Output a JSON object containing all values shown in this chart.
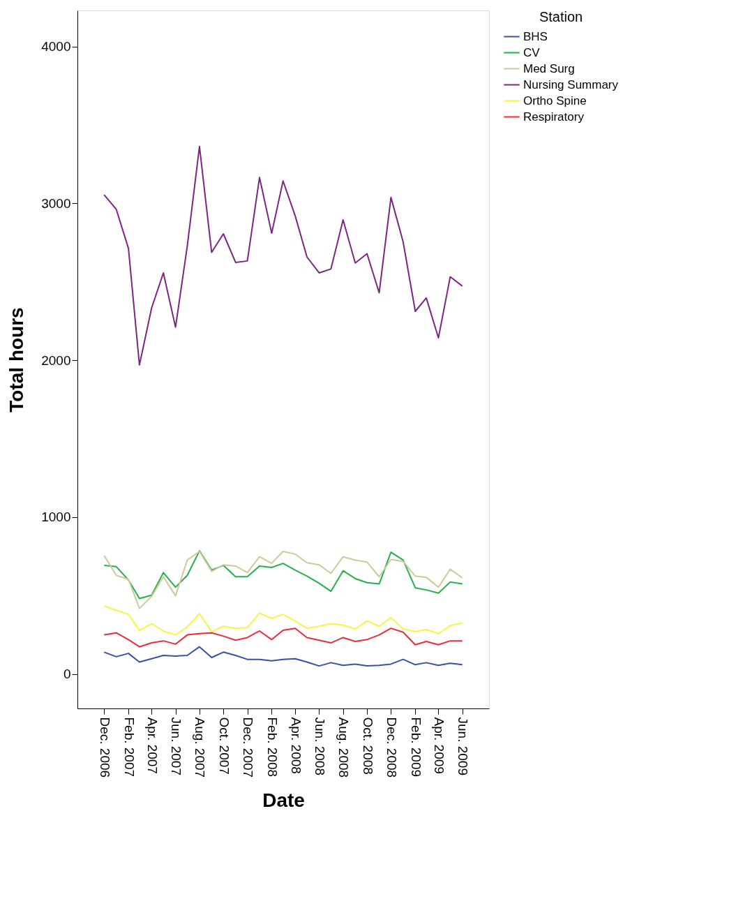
{
  "chart_data": {
    "type": "line",
    "xlabel": "Date",
    "ylabel": "Total hours",
    "legend_title": "Station",
    "legend": "right",
    "grid": false,
    "x": [
      "2006-12",
      "2007-01",
      "2007-02",
      "2007-03",
      "2007-04",
      "2007-05",
      "2007-06",
      "2007-07",
      "2007-08",
      "2007-09",
      "2007-10",
      "2007-11",
      "2007-12",
      "2008-01",
      "2008-02",
      "2008-03",
      "2008-04",
      "2008-05",
      "2008-06",
      "2008-07",
      "2008-08",
      "2008-09",
      "2008-10",
      "2008-11",
      "2008-12",
      "2009-01",
      "2009-02",
      "2009-03",
      "2009-04",
      "2009-05",
      "2009-06"
    ],
    "xlim": [
      "2006-09-24",
      "2009-08-08"
    ],
    "xticks": [
      {
        "value": "2006-12",
        "label": "Dec. 2006"
      },
      {
        "value": "2007-02",
        "label": "Feb. 2007"
      },
      {
        "value": "2007-04",
        "label": "Apr. 2007"
      },
      {
        "value": "2007-06",
        "label": "Jun. 2007"
      },
      {
        "value": "2007-08",
        "label": "Aug. 2007"
      },
      {
        "value": "2007-10",
        "label": "Oct. 2007"
      },
      {
        "value": "2007-12",
        "label": "Dec. 2007"
      },
      {
        "value": "2008-02",
        "label": "Feb. 2008"
      },
      {
        "value": "2008-04",
        "label": "Apr. 2008"
      },
      {
        "value": "2008-06",
        "label": "Jun. 2008"
      },
      {
        "value": "2008-08",
        "label": "Aug. 2008"
      },
      {
        "value": "2008-10",
        "label": "Oct. 2008"
      },
      {
        "value": "2008-12",
        "label": "Dec. 2008"
      },
      {
        "value": "2009-02",
        "label": "Feb. 2009"
      },
      {
        "value": "2009-04",
        "label": "Apr. 2009"
      },
      {
        "value": "2009-06",
        "label": "Jun. 2009"
      }
    ],
    "ylim": [
      -220,
      4230
    ],
    "yticks": [
      0,
      1000,
      2000,
      3000,
      4000
    ],
    "series": [
      {
        "name": "BHS",
        "color": "#3a4fa8",
        "values": [
          139,
          110,
          131,
          76,
          97,
          118,
          114,
          118,
          173,
          105,
          139,
          118,
          93,
          93,
          84,
          93,
          97,
          76,
          51,
          72,
          55,
          63,
          51,
          55,
          63,
          93,
          59,
          72,
          55,
          68,
          59
        ]
      },
      {
        "name": "CV",
        "color": "#21b24a",
        "values": [
          692,
          684,
          599,
          481,
          502,
          646,
          553,
          629,
          785,
          662,
          692,
          620,
          620,
          688,
          679,
          705,
          662,
          624,
          578,
          527,
          658,
          608,
          582,
          574,
          776,
          726,
          549,
          536,
          515,
          586,
          574
        ]
      },
      {
        "name": "Med Surg",
        "color": "#cfc99a",
        "values": [
          755,
          629,
          603,
          418,
          494,
          620,
          498,
          726,
          781,
          654,
          696,
          688,
          646,
          747,
          705,
          781,
          764,
          709,
          696,
          641,
          747,
          726,
          713,
          620,
          730,
          717,
          624,
          616,
          553,
          667,
          612
        ]
      },
      {
        "name": "Nursing Summary",
        "color": "#7b2680",
        "values": [
          3055,
          2962,
          2713,
          1970,
          2333,
          2557,
          2211,
          2730,
          3363,
          2688,
          2806,
          2624,
          2633,
          3165,
          2810,
          3143,
          2920,
          2658,
          2557,
          2582,
          2895,
          2620,
          2679,
          2430,
          3038,
          2755,
          2312,
          2397,
          2143,
          2532,
          2473
        ]
      },
      {
        "name": "Ortho Spine",
        "color": "#f7f542",
        "values": [
          435,
          405,
          380,
          278,
          321,
          274,
          249,
          300,
          384,
          270,
          304,
          291,
          295,
          388,
          354,
          380,
          338,
          291,
          304,
          321,
          312,
          287,
          338,
          304,
          359,
          287,
          270,
          283,
          257,
          308,
          325
        ]
      },
      {
        "name": "Respiratory",
        "color": "#eb2d37",
        "values": [
          249,
          262,
          219,
          173,
          198,
          211,
          190,
          249,
          257,
          262,
          241,
          215,
          232,
          274,
          219,
          278,
          291,
          232,
          215,
          198,
          232,
          207,
          219,
          249,
          291,
          266,
          186,
          207,
          186,
          211,
          211
        ]
      }
    ]
  }
}
